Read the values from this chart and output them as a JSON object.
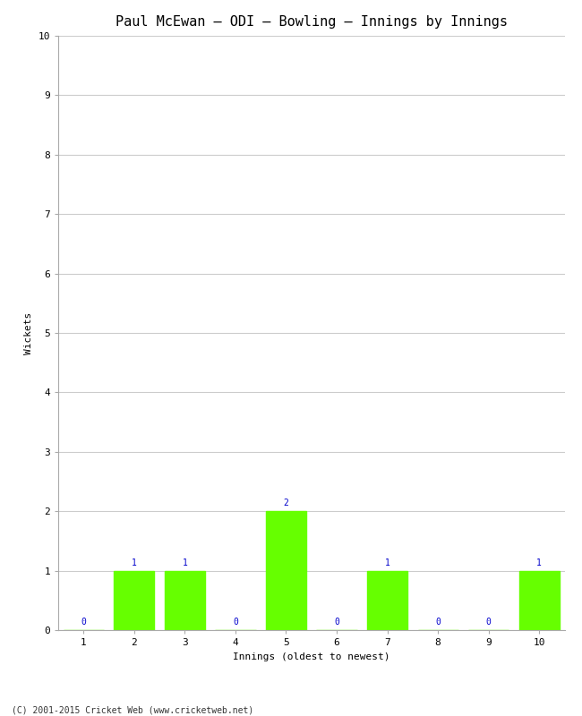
{
  "title": "Paul McEwan – ODI – Bowling – Innings by Innings",
  "xlabel": "Innings (oldest to newest)",
  "ylabel": "Wickets",
  "categories": [
    1,
    2,
    3,
    4,
    5,
    6,
    7,
    8,
    9,
    10
  ],
  "values": [
    0,
    1,
    1,
    0,
    2,
    0,
    1,
    0,
    0,
    1
  ],
  "bar_color": "#66ff00",
  "bar_edge_color": "#66ff00",
  "ylim": [
    0,
    10
  ],
  "yticks": [
    0,
    1,
    2,
    3,
    4,
    5,
    6,
    7,
    8,
    9,
    10
  ],
  "background_color": "#ffffff",
  "grid_color": "#cccccc",
  "label_color": "#0000cc",
  "label_fontsize": 7,
  "title_fontsize": 11,
  "axis_label_fontsize": 8,
  "tick_fontsize": 8,
  "footer": "(C) 2001-2015 Cricket Web (www.cricketweb.net)"
}
